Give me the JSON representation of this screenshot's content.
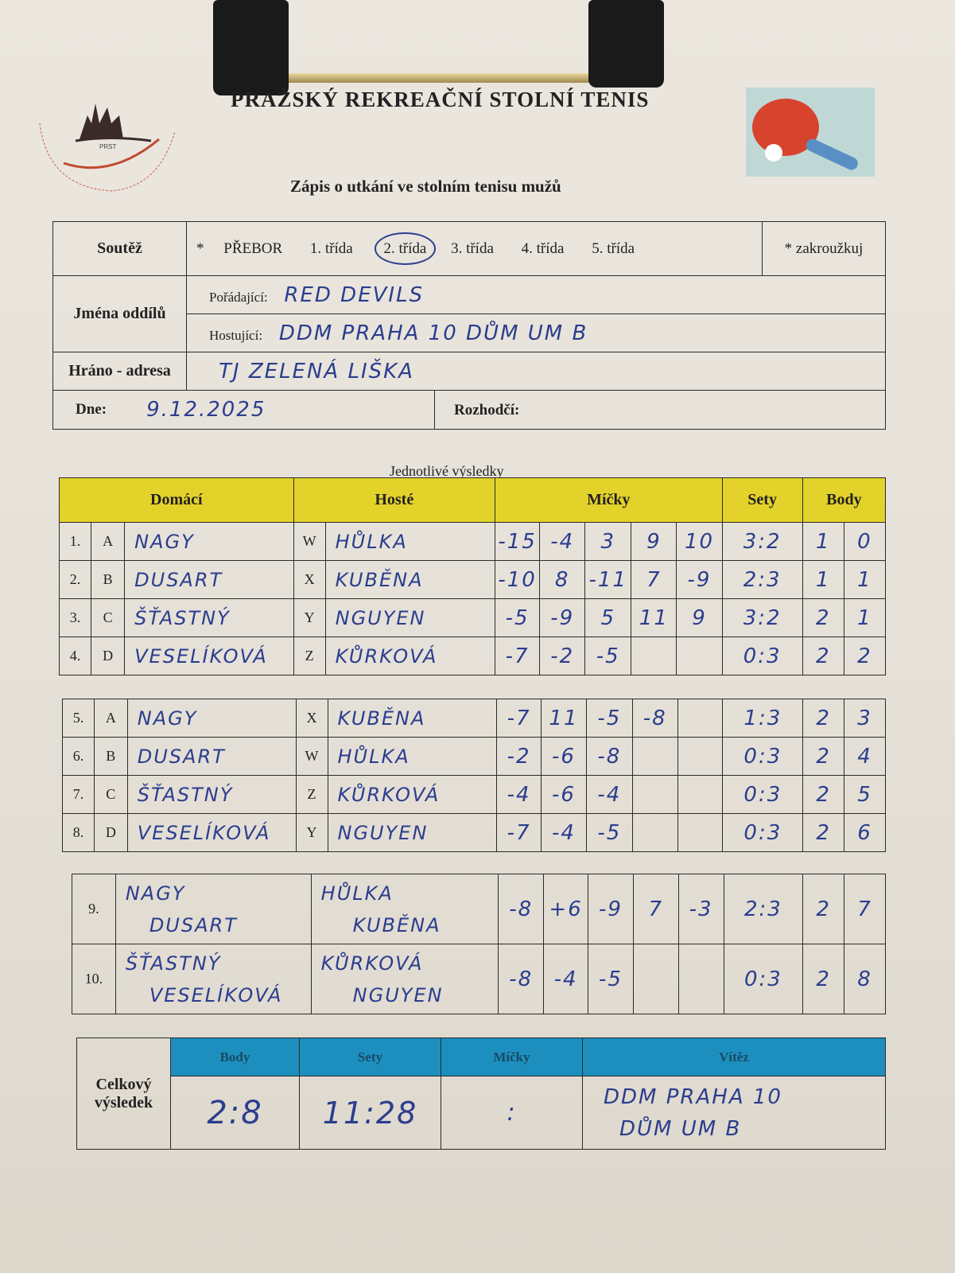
{
  "header": {
    "title": "PRAŽSKÝ REKREAČNÍ STOLNÍ TENIS",
    "subtitle": "Zápis o utkání ve stolním tenisu mužů",
    "logo_text": "PRAŽSKÝ REKREAČNÍ STOLNÍ TENIS",
    "logo_abbr": "PRST"
  },
  "info": {
    "soutez_label": "Soutěž",
    "star": "*",
    "classes": [
      "PŘEBOR",
      "1. třída",
      "2. třída",
      "3. třída",
      "4. třída",
      "5. třída"
    ],
    "selected_class": "2. třída",
    "circle_note": "* zakroužkuj",
    "teams_label": "Jména oddílů",
    "host_label": "Pořádající:",
    "host_value": "RED DEVILS",
    "guest_label": "Hostující:",
    "guest_value": "DDM PRAHA 10 DŮM UM B",
    "venue_label": "Hráno - adresa",
    "venue_value": "TJ ZELENÁ LIŠKA",
    "date_label": "Dne:",
    "date_value": "9.12.2025",
    "referee_label": "Rozhodčí:",
    "referee_value": ""
  },
  "results": {
    "caption": "Jednotlivé výsledky",
    "headers": {
      "home": "Domácí",
      "guest": "Hosté",
      "balls": "Míčky",
      "sets": "Sety",
      "points": "Body"
    },
    "groups": [
      [
        {
          "no": "1.",
          "hl": "A",
          "home": "NAGY",
          "gl": "W",
          "guest": "HŮLKA",
          "balls": [
            "-15",
            "-4",
            "3",
            "9",
            "10"
          ],
          "sets": "3:2",
          "p1": "1",
          "p2": "0"
        },
        {
          "no": "2.",
          "hl": "B",
          "home": "DUSART",
          "gl": "X",
          "guest": "KUBĚNA",
          "balls": [
            "-10",
            "8",
            "-11",
            "7",
            "-9"
          ],
          "sets": "2:3",
          "p1": "1",
          "p2": "1"
        },
        {
          "no": "3.",
          "hl": "C",
          "home": "ŠŤASTNÝ",
          "gl": "Y",
          "guest": "NGUYEN",
          "balls": [
            "-5",
            "-9",
            "5",
            "11",
            "9"
          ],
          "sets": "3:2",
          "p1": "2",
          "p2": "1"
        },
        {
          "no": "4.",
          "hl": "D",
          "home": "VESELÍKOVÁ",
          "gl": "Z",
          "guest": "KŮRKOVÁ",
          "balls": [
            "-7",
            "-2",
            "-5",
            "",
            ""
          ],
          "sets": "0:3",
          "p1": "2",
          "p2": "2"
        }
      ],
      [
        {
          "no": "5.",
          "hl": "A",
          "home": "NAGY",
          "gl": "X",
          "guest": "KUBĚNA",
          "balls": [
            "-7",
            "11",
            "-5",
            "-8",
            ""
          ],
          "sets": "1:3",
          "p1": "2",
          "p2": "3"
        },
        {
          "no": "6.",
          "hl": "B",
          "home": "DUSART",
          "gl": "W",
          "guest": "HŮLKA",
          "balls": [
            "-2",
            "-6",
            "-8",
            "",
            ""
          ],
          "sets": "0:3",
          "p1": "2",
          "p2": "4"
        },
        {
          "no": "7.",
          "hl": "C",
          "home": "ŠŤASTNÝ",
          "gl": "Z",
          "guest": "KŮRKOVÁ",
          "balls": [
            "-4",
            "-6",
            "-4",
            "",
            ""
          ],
          "sets": "0:3",
          "p1": "2",
          "p2": "5"
        },
        {
          "no": "8.",
          "hl": "D",
          "home": "VESELÍKOVÁ",
          "gl": "Y",
          "guest": "NGUYEN",
          "balls": [
            "-7",
            "-4",
            "-5",
            "",
            ""
          ],
          "sets": "0:3",
          "p1": "2",
          "p2": "6"
        }
      ]
    ],
    "doubles": [
      {
        "no": "9.",
        "home": [
          "NAGY",
          "DUSART"
        ],
        "guest": [
          "HŮLKA",
          "KUBĚNA"
        ],
        "balls": [
          "-8",
          "+6",
          "-9",
          "7",
          "-3"
        ],
        "sets": "2:3",
        "p1": "2",
        "p2": "7"
      },
      {
        "no": "10.",
        "home": [
          "ŠŤASTNÝ",
          "VESELÍKOVÁ"
        ],
        "guest": [
          "KŮRKOVÁ",
          "NGUYEN"
        ],
        "balls": [
          "-8",
          "-4",
          "-5",
          "",
          ""
        ],
        "sets": "0:3",
        "p1": "2",
        "p2": "8"
      }
    ]
  },
  "total": {
    "label": "Celkový výsledek",
    "headers": [
      "Body",
      "Sety",
      "Míčky",
      "Vítěz"
    ],
    "points": "2:8",
    "sets": "11:28",
    "balls": ":",
    "winner": [
      "DDM PRAHA 10",
      "DŮM UM B"
    ]
  },
  "colors": {
    "yellow": "#e3d22a",
    "blue": "#1d8fbf",
    "ink": "#2b3d8f"
  }
}
